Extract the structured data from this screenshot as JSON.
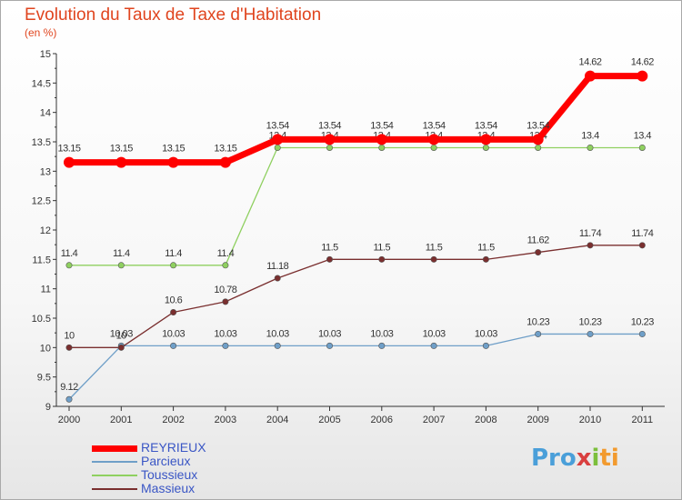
{
  "title": "Evolution du Taux de Taxe d'Habitation",
  "subtitle": "(en %)",
  "logo": {
    "part1": "Pro",
    "part2": "x",
    "part3": "i",
    "part4": "ti"
  },
  "colors": {
    "REYRIEUX": "#ff0000",
    "Parcieux": "#6f9fc8",
    "Toussieux": "#8fd060",
    "Massieux": "#7a2f2f",
    "title": "#e0451f",
    "legend_text": "#3a56c5"
  },
  "chart_data": {
    "type": "line",
    "title": "Evolution du Taux de Taxe d'Habitation",
    "subtitle": "(en %)",
    "xlabel": "",
    "ylabel": "",
    "x": [
      "2000",
      "2001",
      "2002",
      "2003",
      "2004",
      "2005",
      "2006",
      "2007",
      "2008",
      "2009",
      "2010",
      "2011"
    ],
    "ylim": [
      9,
      15
    ],
    "yticks": [
      9,
      9.5,
      10,
      10.5,
      11,
      11.5,
      12,
      12.5,
      13,
      13.5,
      14,
      14.5,
      15
    ],
    "grid": false,
    "legend_position": "bottom-left",
    "series": [
      {
        "name": "REYRIEUX",
        "values": [
          13.15,
          13.15,
          13.15,
          13.15,
          13.54,
          13.54,
          13.54,
          13.54,
          13.54,
          13.54,
          14.62,
          14.62
        ],
        "labels": [
          "13.15",
          "13.15",
          "13.15",
          "13.15",
          "13.54",
          "13.54",
          "13.54",
          "13.54",
          "13.54",
          "13.54",
          "14.62",
          "14.62"
        ]
      },
      {
        "name": "Parcieux",
        "values": [
          9.12,
          10.03,
          10.03,
          10.03,
          10.03,
          10.03,
          10.03,
          10.03,
          10.03,
          10.23,
          10.23,
          10.23
        ],
        "labels": [
          "9.12",
          "10.03",
          "10.03",
          "10.03",
          "10.03",
          "10.03",
          "10.03",
          "10.03",
          "10.03",
          "10.23",
          "10.23",
          "10.23"
        ]
      },
      {
        "name": "Toussieux",
        "values": [
          11.4,
          11.4,
          11.4,
          11.4,
          13.4,
          13.4,
          13.4,
          13.4,
          13.4,
          13.4,
          13.4,
          13.4
        ],
        "labels": [
          "11.4",
          "11.4",
          "11.4",
          "11.4",
          "13.4",
          "13.4",
          "13.4",
          "13.4",
          "13.4",
          "13.4",
          "13.4",
          "13.4"
        ]
      },
      {
        "name": "Massieux",
        "values": [
          10,
          10,
          10.6,
          10.78,
          11.18,
          11.5,
          11.5,
          11.5,
          11.5,
          11.62,
          11.74,
          11.74
        ],
        "labels": [
          "10",
          "10",
          "10.6",
          "10.78",
          "11.18",
          "11.5",
          "11.5",
          "11.5",
          "11.5",
          "11.62",
          "11.74",
          "11.74"
        ]
      }
    ]
  }
}
